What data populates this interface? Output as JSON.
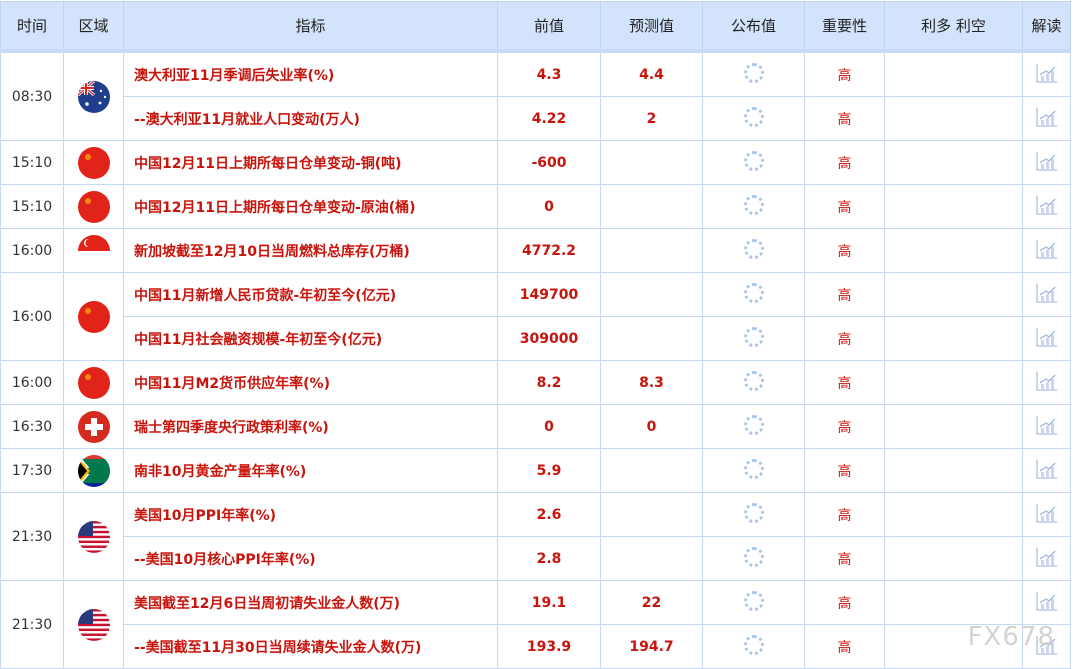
{
  "headers": [
    "时间",
    "区域",
    "指标",
    "前值",
    "预测值",
    "公布值",
    "重要性",
    "利多 利空",
    "解读"
  ],
  "groups": [
    {
      "time": "08:30",
      "flag": "australia",
      "rows": [
        {
          "name": "澳大利亚11月季调后失业率(%)",
          "prev": "4.3",
          "forecast": "4.4",
          "importance": "高"
        },
        {
          "name": "--澳大利亚11月就业人口变动(万人)",
          "prev": "4.22",
          "forecast": "2",
          "importance": "高"
        }
      ]
    },
    {
      "time": "15:10",
      "flag": "china",
      "rows": [
        {
          "name": "中国12月11日上期所每日仓单变动-铜(吨)",
          "prev": "-600",
          "forecast": "",
          "importance": "高"
        }
      ]
    },
    {
      "time": "15:10",
      "flag": "china",
      "rows": [
        {
          "name": "中国12月11日上期所每日仓单变动-原油(桶)",
          "prev": "0",
          "forecast": "",
          "importance": "高"
        }
      ]
    },
    {
      "time": "16:00",
      "flag": "singapore",
      "rows": [
        {
          "name": "新加坡截至12月10日当周燃料总库存(万桶)",
          "prev": "4772.2",
          "forecast": "",
          "importance": "高"
        }
      ]
    },
    {
      "time": "16:00",
      "flag": "china",
      "rows": [
        {
          "name": "中国11月新增人民币贷款-年初至今(亿元)",
          "prev": "149700",
          "forecast": "",
          "importance": "高"
        },
        {
          "name": "中国11月社会融资规模-年初至今(亿元)",
          "prev": "309000",
          "forecast": "",
          "importance": "高"
        }
      ]
    },
    {
      "time": "16:00",
      "flag": "china",
      "rows": [
        {
          "name": "中国11月M2货币供应年率(%)",
          "prev": "8.2",
          "forecast": "8.3",
          "importance": "高"
        }
      ]
    },
    {
      "time": "16:30",
      "flag": "switzerland",
      "rows": [
        {
          "name": "瑞士第四季度央行政策利率(%)",
          "prev": "0",
          "forecast": "0",
          "importance": "高"
        }
      ]
    },
    {
      "time": "17:30",
      "flag": "south-africa",
      "rows": [
        {
          "name": "南非10月黄金产量年率(%)",
          "prev": "5.9",
          "forecast": "",
          "importance": "高"
        }
      ]
    },
    {
      "time": "21:30",
      "flag": "usa",
      "rows": [
        {
          "name": "美国10月PPI年率(%)",
          "prev": "2.6",
          "forecast": "",
          "importance": "高"
        },
        {
          "name": "--美国10月核心PPI年率(%)",
          "prev": "2.8",
          "forecast": "",
          "importance": "高"
        }
      ]
    },
    {
      "time": "21:30",
      "flag": "usa",
      "rows": [
        {
          "name": "美国截至12月6日当周初请失业金人数(万)",
          "prev": "19.1",
          "forecast": "22",
          "importance": "高"
        },
        {
          "name": "--美国截至11月30日当周续请失业金人数(万)",
          "prev": "193.9",
          "forecast": "194.7",
          "importance": "高"
        }
      ]
    }
  ],
  "watermark": "FX678",
  "colors": {
    "accent": "#c8140c",
    "header_bg": "#d3e3fb"
  }
}
